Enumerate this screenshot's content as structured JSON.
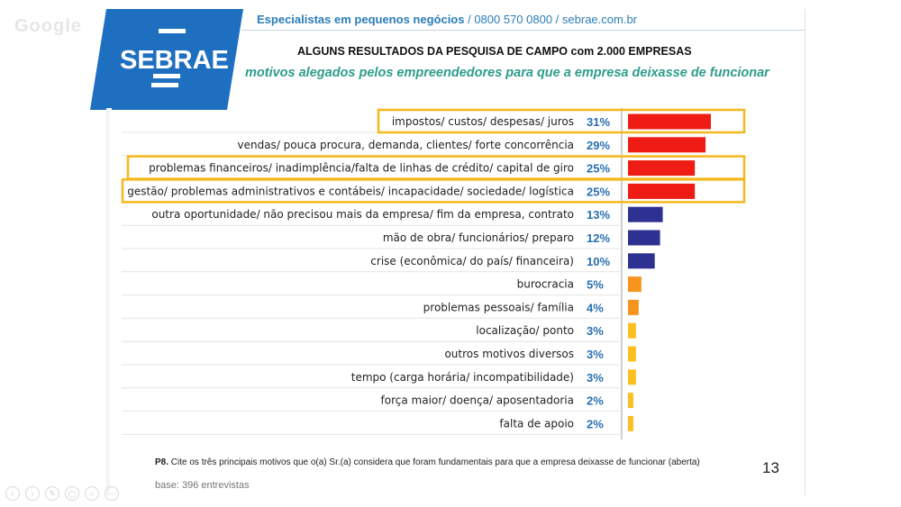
{
  "header": {
    "org_line_bold": "Especialistas em pequenos negócios",
    "org_line_rest": " / 0800 570 0800 / sebrae.com.br",
    "title": "ALGUNS RESULTADOS DA PESQUISA DE CAMPO com 2.000 EMPRESAS",
    "subtitle": "motivos alegados pelos empreendedores para que a empresa deixasse de funcionar"
  },
  "logo": {
    "text": "SEBRAE",
    "color": "#1f6fc0"
  },
  "watermark": "Google",
  "footer": {
    "question_id": "P8.",
    "question_text": " Cite os três principais motivos que o(a) Sr.(a) considera que foram fundamentais para que a empresa deixasse de funcionar (aberta)",
    "base": "base: 396 entrevistas",
    "page_number": "13"
  },
  "colors": {
    "red": "#ee1c14",
    "navy": "#2e3192",
    "orange": "#f7941d",
    "yellow": "#fcbf22",
    "highlight": "#f5b81c",
    "value_text": "#2a6fb0"
  },
  "chart_data": {
    "type": "bar",
    "orientation": "horizontal",
    "unit": "%",
    "xlim": [
      0,
      31
    ],
    "categories": [
      "impostos/ custos/ despesas/ juros",
      "vendas/ pouca procura, demanda, clientes/ forte concorrência",
      "problemas financeiros/ inadimplência/falta de linhas de crédito/ capital de giro",
      "gestão/ problemas administrativos e contábeis/ incapacidade/ sociedade/ logística",
      "outra oportunidade/ não precisou mais da empresa/ fim da empresa, contrato",
      "mão de obra/ funcionários/ preparo",
      "crise (econômica/ do país/ financeira)",
      "burocracia",
      "problemas pessoais/ família",
      "localização/ ponto",
      "outros motivos diversos",
      "tempo (carga horária/ incompatibilidade)",
      "força maior/ doença/ aposentadoria",
      "falta de apoio"
    ],
    "values": [
      31,
      29,
      25,
      25,
      13,
      12,
      10,
      5,
      4,
      3,
      3,
      3,
      2,
      2
    ],
    "value_labels": [
      "31%",
      "29%",
      "25%",
      "25%",
      "13%",
      "12%",
      "10%",
      "5%",
      "4%",
      "3%",
      "3%",
      "3%",
      "2%",
      "2%"
    ],
    "bar_colors": [
      "red",
      "red",
      "red",
      "red",
      "navy",
      "navy",
      "navy",
      "orange",
      "orange",
      "yellow",
      "yellow",
      "yellow",
      "yellow",
      "yellow"
    ],
    "highlighted": [
      0,
      2,
      3
    ]
  }
}
